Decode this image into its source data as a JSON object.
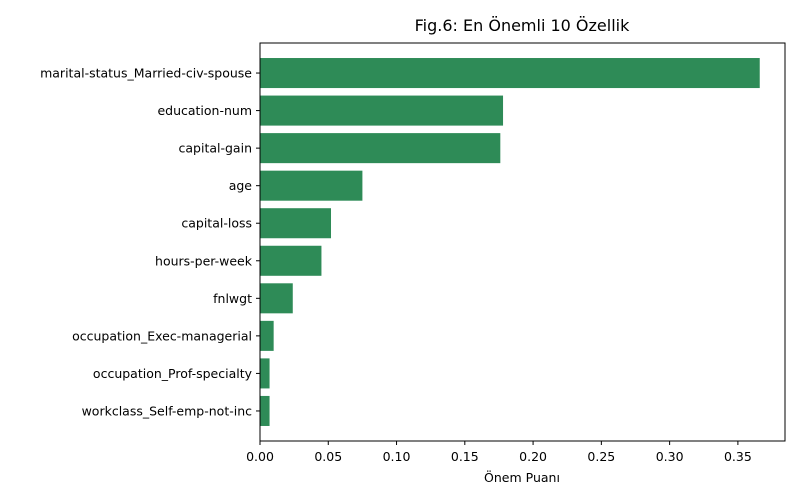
{
  "chart_data": {
    "type": "bar",
    "orientation": "horizontal",
    "title": "Fig.6: En Önemli 10 Özellik",
    "xlabel": "Önem Puanı",
    "ylabel": "",
    "xlim": [
      0,
      0.3845
    ],
    "xticks": [
      "0.00",
      "0.05",
      "0.10",
      "0.15",
      "0.20",
      "0.25",
      "0.30",
      "0.35"
    ],
    "bar_color": "#2e8b57",
    "grid": false,
    "categories": [
      "marital-status_Married-civ-spouse",
      "education-num",
      "capital-gain",
      "age",
      "capital-loss",
      "hours-per-week",
      "fnlwgt",
      "occupation_Exec-managerial",
      "occupation_Prof-specialty",
      "workclass_Self-emp-not-inc"
    ],
    "values": [
      0.366,
      0.178,
      0.176,
      0.075,
      0.052,
      0.045,
      0.024,
      0.01,
      0.007,
      0.007
    ]
  }
}
